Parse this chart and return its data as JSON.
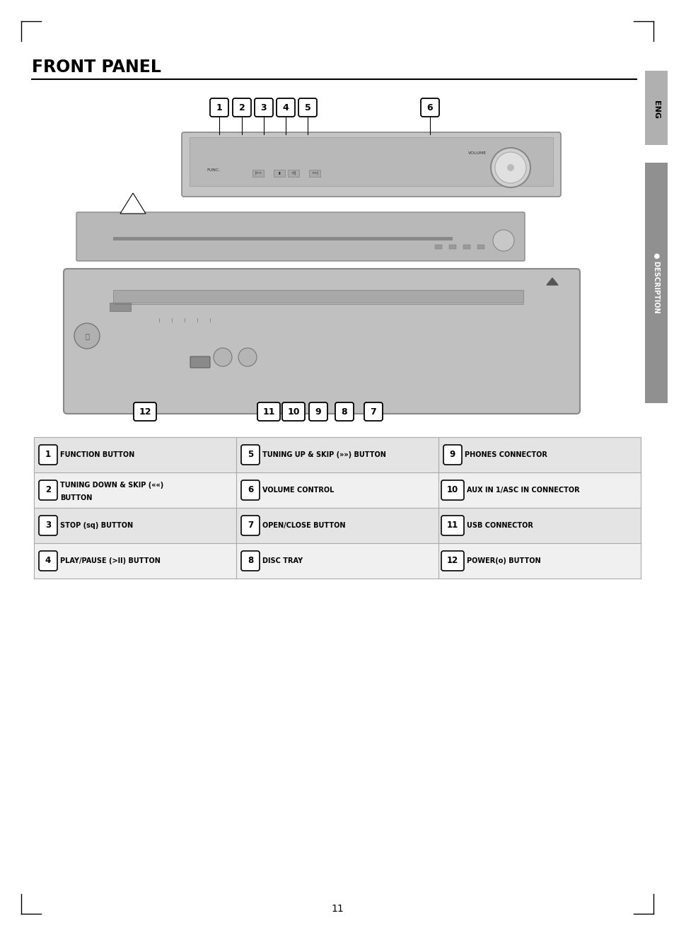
{
  "title": "FRONT PANEL",
  "bg_color": "#ffffff",
  "sidebar_color": "#a0a0a0",
  "sidebar2_color": "#707070",
  "page_number": "11",
  "table_items": [
    [
      {
        "num": "1",
        "text": "FUNCTION BUTTON"
      },
      {
        "num": "5",
        "text": "TUNING UP & SKIP (»») BUTTON"
      },
      {
        "num": "9",
        "text": "PHONES CONNECTOR"
      }
    ],
    [
      {
        "num": "2",
        "text": "TUNING DOWN & SKIP (««)\nBUTTON"
      },
      {
        "num": "6",
        "text": "VOLUME CONTROL"
      },
      {
        "num": "10",
        "text": "AUX IN 1/ASC IN CONNECTOR"
      }
    ],
    [
      {
        "num": "3",
        "text": "STOP (sq) BUTTON"
      },
      {
        "num": "7",
        "text": "OPEN/CLOSE BUTTON"
      },
      {
        "num": "11",
        "text": "USB CONNECTOR"
      }
    ],
    [
      {
        "num": "4",
        "text": "PLAY/PAUSE (>II) BUTTON"
      },
      {
        "num": "8",
        "text": "DISC TRAY"
      },
      {
        "num": "12",
        "text": "POWER(o) BUTTON"
      }
    ]
  ]
}
